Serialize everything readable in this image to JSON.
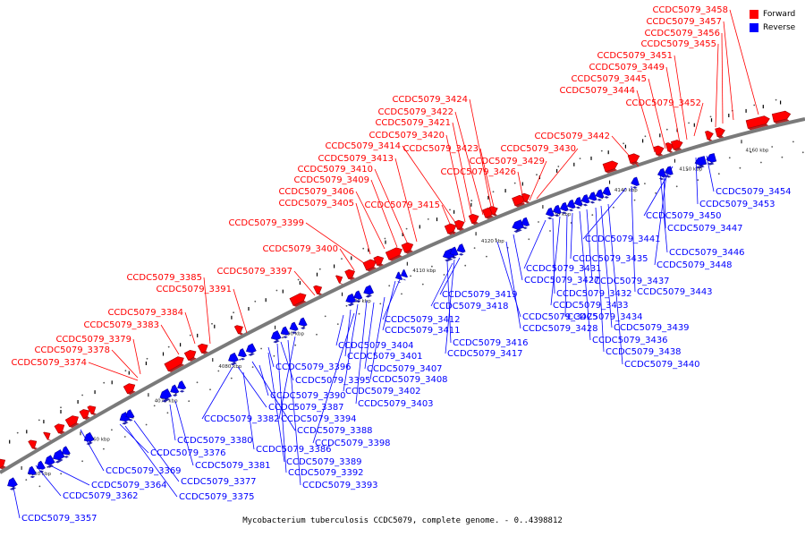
{
  "legend": {
    "forward_label": "Forward",
    "reverse_label": "Reverse",
    "forward_color": "#ff0000",
    "reverse_color": "#0000ff"
  },
  "caption": "Mycobacterium tuberculosis CCDC5079, complete genome. - 0..4398812",
  "ruler_ticks": [
    "4050 kbp",
    "4060 kbp",
    "4070 kbp",
    "4080 kbp",
    "4090 kbp",
    "4100 kbp",
    "4110 kbp",
    "4120 kbp",
    "4130 kbp",
    "4140 kbp",
    "4150 kbp",
    "4160 kbp"
  ],
  "forward_genes": [
    "CCDC5079_3374",
    "CCDC5079_3378",
    "CCDC5079_3379",
    "CCDC5079_3383",
    "CCDC5079_3384",
    "CCDC5079_3391",
    "CCDC5079_3385",
    "CCDC5079_3397",
    "CCDC5079_3400",
    "CCDC5079_3399",
    "CCDC5079_3405",
    "CCDC5079_3406",
    "CCDC5079_3409",
    "CCDC5079_3410",
    "CCDC5079_3413",
    "CCDC5079_3414",
    "CCDC5079_3415",
    "CCDC5079_3420",
    "CCDC5079_3421",
    "CCDC5079_3422",
    "CCDC5079_3424",
    "CCDC5079_3423",
    "CCDC5079_3426",
    "CCDC5079_3429",
    "CCDC5079_3430",
    "CCDC5079_3442",
    "CCDC5079_3444",
    "CCDC5079_3445",
    "CCDC5079_3449",
    "CCDC5079_3451",
    "CCDC5079_3452",
    "CCDC5079_3455",
    "CCDC5079_3456",
    "CCDC5079_3457",
    "CCDC5079_3458"
  ],
  "reverse_genes": [
    "CCDC5079_3357",
    "CCDC5079_3362",
    "CCDC5079_3364",
    "CCDC5079_3369",
    "CCDC5079_3375",
    "CCDC5079_3377",
    "CCDC5079_3376",
    "CCDC5079_3381",
    "CCDC5079_3380",
    "CCDC5079_3382",
    "CCDC5079_3386",
    "CCDC5079_3387",
    "CCDC5079_3388",
    "CCDC5079_3389",
    "CCDC5079_3390",
    "CCDC5079_3392",
    "CCDC5079_3393",
    "CCDC5079_3394",
    "CCDC5079_3395",
    "CCDC5079_3396",
    "CCDC5079_3398",
    "CCDC5079_3401",
    "CCDC5079_3402",
    "CCDC5079_3403",
    "CCDC5079_3404",
    "CCDC5079_3407",
    "CCDC5079_3408",
    "CCDC5079_3411",
    "CCDC5079_3412",
    "CCDC5079_3416",
    "CCDC5079_3417",
    "CCDC5079_3418",
    "CCDC5079_3419",
    "CCDC5079_3425",
    "CCDC5079_3427",
    "CCDC5079_3428",
    "CCDC5079_3431",
    "CCDC5079_3432",
    "CCDC5079_3433",
    "CCDC5079_3434",
    "CCDC5079_3435",
    "CCDC5079_3436",
    "CCDC5079_3437",
    "CCDC5079_3438",
    "CCDC5079_3439",
    "CCDC5079_3440",
    "CCDC5079_3441",
    "CCDC5079_3443",
    "CCDC5079_3446",
    "CCDC5079_3447",
    "CCDC5079_3448",
    "CCDC5079_3450",
    "CCDC5079_3453",
    "CCDC5079_3454"
  ]
}
